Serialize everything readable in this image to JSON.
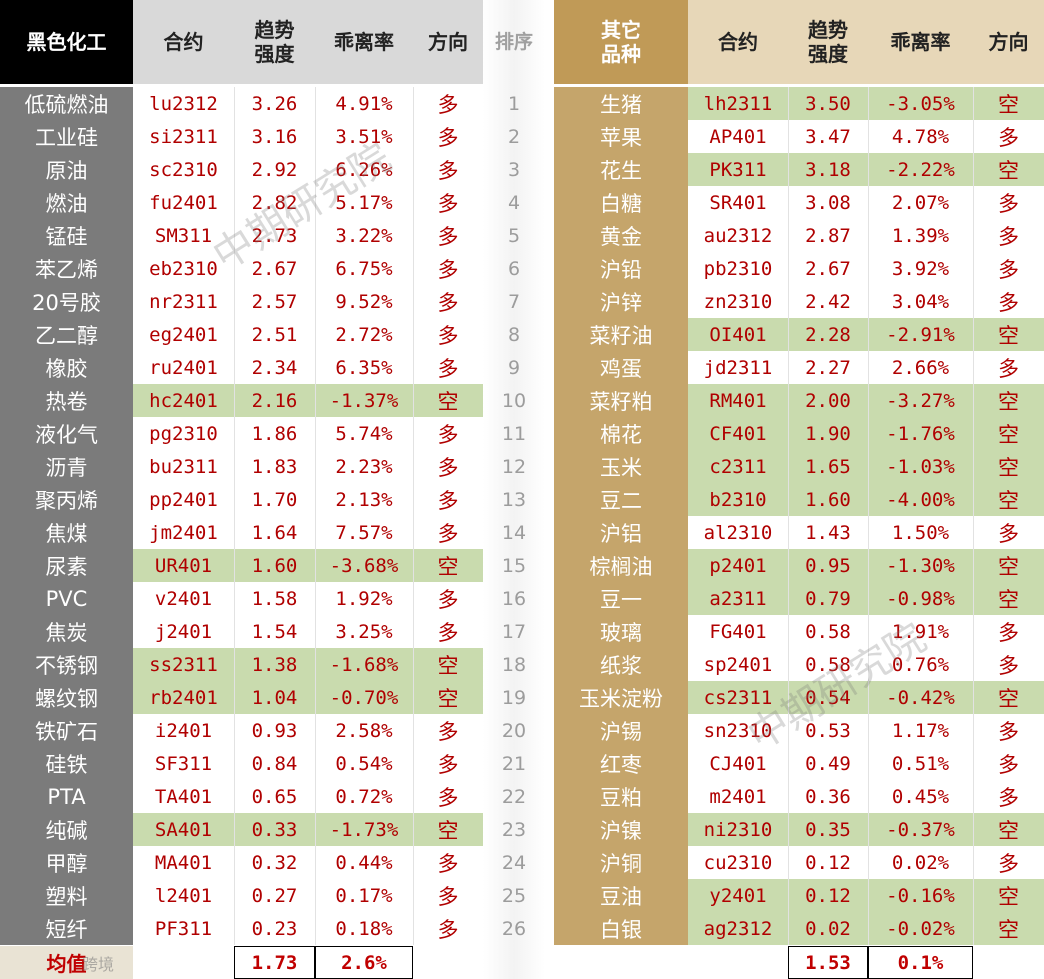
{
  "left": {
    "header": {
      "group": "黑色化工",
      "contract": "合约",
      "strength_l1": "趋势",
      "strength_l2": "强度",
      "deviation": "乖离率",
      "direction": "方向"
    },
    "rows": [
      {
        "name": "低硫燃油",
        "code": "lu2312",
        "strength": "3.26",
        "deviation": "4.91%",
        "direction": "多",
        "short": false
      },
      {
        "name": "工业硅",
        "code": "si2311",
        "strength": "3.16",
        "deviation": "3.51%",
        "direction": "多",
        "short": false
      },
      {
        "name": "原油",
        "code": "sc2310",
        "strength": "2.92",
        "deviation": "6.26%",
        "direction": "多",
        "short": false
      },
      {
        "name": "燃油",
        "code": "fu2401",
        "strength": "2.82",
        "deviation": "5.17%",
        "direction": "多",
        "short": false
      },
      {
        "name": "锰硅",
        "code": "SM311",
        "strength": "2.73",
        "deviation": "3.22%",
        "direction": "多",
        "short": false
      },
      {
        "name": "苯乙烯",
        "code": "eb2310",
        "strength": "2.67",
        "deviation": "6.75%",
        "direction": "多",
        "short": false
      },
      {
        "name": "20号胶",
        "code": "nr2311",
        "strength": "2.57",
        "deviation": "9.52%",
        "direction": "多",
        "short": false
      },
      {
        "name": "乙二醇",
        "code": "eg2401",
        "strength": "2.51",
        "deviation": "2.72%",
        "direction": "多",
        "short": false
      },
      {
        "name": "橡胶",
        "code": "ru2401",
        "strength": "2.34",
        "deviation": "6.35%",
        "direction": "多",
        "short": false
      },
      {
        "name": "热卷",
        "code": "hc2401",
        "strength": "2.16",
        "deviation": "-1.37%",
        "direction": "空",
        "short": true
      },
      {
        "name": "液化气",
        "code": "pg2310",
        "strength": "1.86",
        "deviation": "5.74%",
        "direction": "多",
        "short": false
      },
      {
        "name": "沥青",
        "code": "bu2311",
        "strength": "1.83",
        "deviation": "2.23%",
        "direction": "多",
        "short": false
      },
      {
        "name": "聚丙烯",
        "code": "pp2401",
        "strength": "1.70",
        "deviation": "2.13%",
        "direction": "多",
        "short": false
      },
      {
        "name": "焦煤",
        "code": "jm2401",
        "strength": "1.64",
        "deviation": "7.57%",
        "direction": "多",
        "short": false
      },
      {
        "name": "尿素",
        "code": "UR401",
        "strength": "1.60",
        "deviation": "-3.68%",
        "direction": "空",
        "short": true
      },
      {
        "name": "PVC",
        "code": "v2401",
        "strength": "1.58",
        "deviation": "1.92%",
        "direction": "多",
        "short": false
      },
      {
        "name": "焦炭",
        "code": "j2401",
        "strength": "1.54",
        "deviation": "3.25%",
        "direction": "多",
        "short": false
      },
      {
        "name": "不锈钢",
        "code": "ss2311",
        "strength": "1.38",
        "deviation": "-1.68%",
        "direction": "空",
        "short": true
      },
      {
        "name": "螺纹钢",
        "code": "rb2401",
        "strength": "1.04",
        "deviation": "-0.70%",
        "direction": "空",
        "short": true
      },
      {
        "name": "铁矿石",
        "code": "i2401",
        "strength": "0.93",
        "deviation": "2.58%",
        "direction": "多",
        "short": false
      },
      {
        "name": "硅铁",
        "code": "SF311",
        "strength": "0.84",
        "deviation": "0.54%",
        "direction": "多",
        "short": false
      },
      {
        "name": "PTA",
        "code": "TA401",
        "strength": "0.65",
        "deviation": "0.72%",
        "direction": "多",
        "short": false
      },
      {
        "name": "纯碱",
        "code": "SA401",
        "strength": "0.33",
        "deviation": "-1.73%",
        "direction": "空",
        "short": true
      },
      {
        "name": "甲醇",
        "code": "MA401",
        "strength": "0.32",
        "deviation": "0.44%",
        "direction": "多",
        "short": false
      },
      {
        "name": "塑料",
        "code": "l2401",
        "strength": "0.27",
        "deviation": "0.17%",
        "direction": "多",
        "short": false
      },
      {
        "name": "短纤",
        "code": "PF311",
        "strength": "0.23",
        "deviation": "0.18%",
        "direction": "多",
        "short": false
      }
    ],
    "average": {
      "label": "均值",
      "strength": "1.73",
      "deviation": "2.6%"
    }
  },
  "rank_header": "排序",
  "ranks": [
    "1",
    "2",
    "3",
    "4",
    "5",
    "6",
    "7",
    "8",
    "9",
    "10",
    "11",
    "12",
    "13",
    "14",
    "15",
    "16",
    "17",
    "18",
    "19",
    "20",
    "21",
    "22",
    "23",
    "24",
    "25",
    "26"
  ],
  "right": {
    "header": {
      "group_l1": "其它",
      "group_l2": "品种",
      "contract": "合约",
      "strength_l1": "趋势",
      "strength_l2": "强度",
      "deviation": "乖离率",
      "direction": "方向"
    },
    "rows": [
      {
        "name": "生猪",
        "code": "lh2311",
        "strength": "3.50",
        "deviation": "-3.05%",
        "direction": "空",
        "short": true
      },
      {
        "name": "苹果",
        "code": "AP401",
        "strength": "3.47",
        "deviation": "4.78%",
        "direction": "多",
        "short": false
      },
      {
        "name": "花生",
        "code": "PK311",
        "strength": "3.18",
        "deviation": "-2.22%",
        "direction": "空",
        "short": true
      },
      {
        "name": "白糖",
        "code": "SR401",
        "strength": "3.08",
        "deviation": "2.07%",
        "direction": "多",
        "short": false
      },
      {
        "name": "黄金",
        "code": "au2312",
        "strength": "2.87",
        "deviation": "1.39%",
        "direction": "多",
        "short": false
      },
      {
        "name": "沪铅",
        "code": "pb2310",
        "strength": "2.67",
        "deviation": "3.92%",
        "direction": "多",
        "short": false
      },
      {
        "name": "沪锌",
        "code": "zn2310",
        "strength": "2.42",
        "deviation": "3.04%",
        "direction": "多",
        "short": false
      },
      {
        "name": "菜籽油",
        "code": "OI401",
        "strength": "2.28",
        "deviation": "-2.91%",
        "direction": "空",
        "short": true
      },
      {
        "name": "鸡蛋",
        "code": "jd2311",
        "strength": "2.27",
        "deviation": "2.66%",
        "direction": "多",
        "short": false
      },
      {
        "name": "菜籽粕",
        "code": "RM401",
        "strength": "2.00",
        "deviation": "-3.27%",
        "direction": "空",
        "short": true
      },
      {
        "name": "棉花",
        "code": "CF401",
        "strength": "1.90",
        "deviation": "-1.76%",
        "direction": "空",
        "short": true
      },
      {
        "name": "玉米",
        "code": "c2311",
        "strength": "1.65",
        "deviation": "-1.03%",
        "direction": "空",
        "short": true
      },
      {
        "name": "豆二",
        "code": "b2310",
        "strength": "1.60",
        "deviation": "-4.00%",
        "direction": "空",
        "short": true
      },
      {
        "name": "沪铝",
        "code": "al2310",
        "strength": "1.43",
        "deviation": "1.50%",
        "direction": "多",
        "short": false
      },
      {
        "name": "棕榈油",
        "code": "p2401",
        "strength": "0.95",
        "deviation": "-1.30%",
        "direction": "空",
        "short": true
      },
      {
        "name": "豆一",
        "code": "a2311",
        "strength": "0.79",
        "deviation": "-0.98%",
        "direction": "空",
        "short": true
      },
      {
        "name": "玻璃",
        "code": "FG401",
        "strength": "0.58",
        "deviation": "1.91%",
        "direction": "多",
        "short": false
      },
      {
        "name": "纸浆",
        "code": "sp2401",
        "strength": "0.58",
        "deviation": "0.76%",
        "direction": "多",
        "short": false
      },
      {
        "name": "玉米淀粉",
        "code": "cs2311",
        "strength": "0.54",
        "deviation": "-0.42%",
        "direction": "空",
        "short": true
      },
      {
        "name": "沪锡",
        "code": "sn2310",
        "strength": "0.53",
        "deviation": "1.17%",
        "direction": "多",
        "short": false
      },
      {
        "name": "红枣",
        "code": "CJ401",
        "strength": "0.49",
        "deviation": "0.51%",
        "direction": "多",
        "short": false
      },
      {
        "name": "豆粕",
        "code": "m2401",
        "strength": "0.36",
        "deviation": "0.45%",
        "direction": "多",
        "short": false
      },
      {
        "name": "沪镍",
        "code": "ni2310",
        "strength": "0.35",
        "deviation": "-0.37%",
        "direction": "空",
        "short": true
      },
      {
        "name": "沪铜",
        "code": "cu2310",
        "strength": "0.12",
        "deviation": "0.02%",
        "direction": "多",
        "short": false
      },
      {
        "name": "豆油",
        "code": "y2401",
        "strength": "0.12",
        "deviation": "-0.16%",
        "direction": "空",
        "short": true
      },
      {
        "name": "白银",
        "code": "ag2312",
        "strength": "0.02",
        "deviation": "-0.02%",
        "direction": "空",
        "short": true
      }
    ],
    "average": {
      "strength": "1.53",
      "deviation": "0.1%"
    }
  },
  "watermark": {
    "text": "中期研究院",
    "source": "跨境"
  },
  "colors": {
    "header_black": "#000000",
    "header_gold": "#c09a57",
    "label_gray": "#7b7b7b",
    "label_gold": "#c5a56b",
    "short_green": "#c9dbae",
    "value_red": "#b00000"
  }
}
